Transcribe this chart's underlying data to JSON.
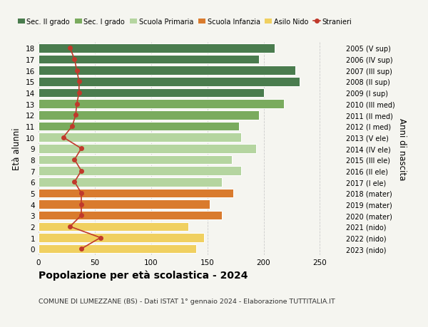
{
  "ages": [
    18,
    17,
    16,
    15,
    14,
    13,
    12,
    11,
    10,
    9,
    8,
    7,
    6,
    5,
    4,
    3,
    2,
    1,
    0
  ],
  "right_labels": [
    "2005 (V sup)",
    "2006 (IV sup)",
    "2007 (III sup)",
    "2008 (II sup)",
    "2009 (I sup)",
    "2010 (III med)",
    "2011 (II med)",
    "2012 (I med)",
    "2013 (V ele)",
    "2014 (IV ele)",
    "2015 (III ele)",
    "2016 (II ele)",
    "2017 (I ele)",
    "2018 (mater)",
    "2019 (mater)",
    "2020 (mater)",
    "2021 (nido)",
    "2022 (nido)",
    "2023 (nido)"
  ],
  "bar_values": [
    210,
    196,
    228,
    232,
    200,
    218,
    196,
    178,
    180,
    193,
    172,
    180,
    163,
    173,
    152,
    163,
    133,
    147,
    140
  ],
  "bar_colors": [
    "#4a7c4e",
    "#4a7c4e",
    "#4a7c4e",
    "#4a7c4e",
    "#4a7c4e",
    "#7aab5e",
    "#7aab5e",
    "#7aab5e",
    "#b5d5a0",
    "#b5d5a0",
    "#b5d5a0",
    "#b5d5a0",
    "#b5d5a0",
    "#d97b2e",
    "#d97b2e",
    "#d97b2e",
    "#f0d060",
    "#f0d060",
    "#f0d060"
  ],
  "stranieri_values": [
    28,
    32,
    34,
    36,
    36,
    34,
    33,
    30,
    22,
    38,
    32,
    38,
    32,
    38,
    38,
    38,
    28,
    55,
    38
  ],
  "legend_labels": [
    "Sec. II grado",
    "Sec. I grado",
    "Scuola Primaria",
    "Scuola Infanzia",
    "Asilo Nido",
    "Stranieri"
  ],
  "legend_colors": [
    "#4a7c4e",
    "#7aab5e",
    "#b5d5a0",
    "#d97b2e",
    "#f0d060",
    "#c0392b"
  ],
  "ylabel_left": "Età alunni",
  "ylabel_right": "Anni di nascita",
  "title": "Popolazione per età scolastica - 2024",
  "subtitle": "COMUNE DI LUMEZZANE (BS) - Dati ISTAT 1° gennaio 2024 - Elaborazione TUTTITALIA.IT",
  "xlim": [
    0,
    270
  ],
  "xticks": [
    0,
    50,
    100,
    150,
    200,
    250
  ],
  "background_color": "#f5f5f0",
  "stranieri_color": "#c0392b",
  "stranieri_linewidth": 1.2
}
